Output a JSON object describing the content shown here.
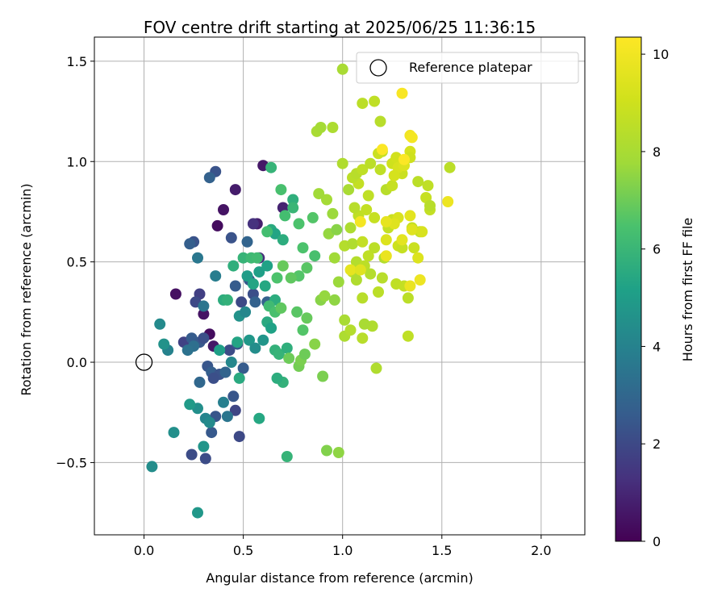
{
  "chart_data": {
    "type": "scatter",
    "title": "FOV centre drift starting at 2025/06/25 11:36:15",
    "xlabel": "Angular distance from reference (arcmin)",
    "ylabel": "Rotation from reference (arcmin)",
    "xlim": [
      -0.25,
      2.22
    ],
    "ylim": [
      -0.86,
      1.62
    ],
    "xticks": [
      0.0,
      0.5,
      1.0,
      1.5,
      2.0
    ],
    "xtick_labels": [
      "0.0",
      "0.5",
      "1.0",
      "1.5",
      "2.0"
    ],
    "yticks": [
      -0.5,
      0.0,
      0.5,
      1.0,
      1.5
    ],
    "ytick_labels": [
      "−0.5",
      "0.0",
      "0.5",
      "1.0",
      "1.5"
    ],
    "grid": true,
    "colormap": "viridis",
    "colorbar": {
      "label": "Hours from first FF file",
      "range": [
        0,
        10.35
      ],
      "ticks": [
        0,
        2,
        4,
        6,
        8,
        10
      ],
      "tick_labels": [
        "0",
        "2",
        "4",
        "6",
        "8",
        "10"
      ]
    },
    "legend": {
      "position": "top-right",
      "entries": [
        {
          "label": "Reference platepar",
          "marker": "open-circle"
        }
      ]
    },
    "reference_point": [
      0.0,
      0.0
    ],
    "points": [
      [
        0.57,
        0.69,
        0.8
      ],
      [
        0.6,
        0.98,
        0.6
      ],
      [
        0.46,
        0.86,
        0.7
      ],
      [
        0.4,
        0.76,
        0.5
      ],
      [
        0.37,
        0.68,
        0.3
      ],
      [
        0.16,
        0.34,
        0.4
      ],
      [
        0.3,
        0.24,
        0.5
      ],
      [
        0.33,
        0.14,
        0.3
      ],
      [
        0.35,
        0.08,
        0.6
      ],
      [
        0.7,
        0.77,
        0.9
      ],
      [
        0.55,
        0.69,
        1.3
      ],
      [
        0.58,
        0.52,
        1.2
      ],
      [
        0.36,
        0.95,
        2.3
      ],
      [
        0.33,
        0.92,
        2.8
      ],
      [
        0.25,
        0.6,
        2.3
      ],
      [
        0.23,
        0.59,
        2.7
      ],
      [
        0.28,
        0.34,
        1.7
      ],
      [
        0.26,
        0.3,
        2.0
      ],
      [
        0.2,
        0.1,
        1.8
      ],
      [
        0.24,
        0.12,
        2.6
      ],
      [
        0.28,
        0.1,
        2.5
      ],
      [
        0.3,
        0.12,
        2.2
      ],
      [
        0.32,
        -0.02,
        2.4
      ],
      [
        0.34,
        -0.05,
        2.7
      ],
      [
        0.38,
        -0.06,
        2.3
      ],
      [
        0.41,
        -0.05,
        2.9
      ],
      [
        0.43,
        0.06,
        2.1
      ],
      [
        0.47,
        0.09,
        2.4
      ],
      [
        0.5,
        -0.03,
        2.6
      ],
      [
        0.55,
        0.34,
        2.2
      ],
      [
        0.53,
        0.41,
        2.5
      ],
      [
        0.56,
        0.3,
        2.8
      ],
      [
        0.49,
        0.3,
        2.0
      ],
      [
        0.46,
        0.38,
        2.6
      ],
      [
        0.44,
        0.62,
        2.3
      ],
      [
        0.52,
        0.6,
        2.9
      ],
      [
        0.62,
        0.3,
        2.8
      ],
      [
        0.35,
        -0.08,
        2.2
      ],
      [
        0.45,
        -0.17,
        2.4
      ],
      [
        0.46,
        -0.24,
        1.9
      ],
      [
        0.48,
        -0.37,
        2.0
      ],
      [
        0.36,
        -0.27,
        2.4
      ],
      [
        0.34,
        -0.35,
        2.5
      ],
      [
        0.24,
        -0.46,
        2.1
      ],
      [
        0.31,
        -0.48,
        2.1
      ],
      [
        0.28,
        -0.1,
        3.0
      ],
      [
        0.25,
        0.08,
        3.3
      ],
      [
        0.3,
        0.28,
        3.5
      ],
      [
        0.36,
        0.43,
        3.8
      ],
      [
        0.27,
        0.52,
        3.6
      ],
      [
        0.22,
        0.06,
        3.4
      ],
      [
        0.12,
        0.06,
        4.0
      ],
      [
        0.08,
        0.19,
        4.3
      ],
      [
        0.1,
        0.09,
        4.6
      ],
      [
        0.15,
        -0.35,
        4.5
      ],
      [
        0.04,
        -0.52,
        4.4
      ],
      [
        0.27,
        -0.75,
        4.8
      ],
      [
        0.27,
        -0.23,
        4.5
      ],
      [
        0.31,
        -0.28,
        4.1
      ],
      [
        0.33,
        -0.3,
        4.3
      ],
      [
        0.3,
        -0.42,
        4.7
      ],
      [
        0.23,
        -0.21,
        4.9
      ],
      [
        0.4,
        -0.2,
        3.9
      ],
      [
        0.42,
        -0.27,
        3.5
      ],
      [
        0.44,
        0.0,
        4.2
      ],
      [
        0.48,
        0.23,
        4.6
      ],
      [
        0.51,
        0.25,
        4.2
      ],
      [
        0.53,
        0.11,
        4.8
      ],
      [
        0.56,
        0.07,
        4.4
      ],
      [
        0.6,
        0.11,
        4.7
      ],
      [
        0.52,
        0.43,
        5.0
      ],
      [
        0.55,
        0.39,
        5.3
      ],
      [
        0.58,
        0.45,
        5.1
      ],
      [
        0.62,
        0.48,
        5.2
      ],
      [
        0.61,
        0.38,
        5.4
      ],
      [
        0.66,
        0.31,
        5.6
      ],
      [
        0.64,
        0.66,
        5.5
      ],
      [
        0.66,
        0.64,
        5.3
      ],
      [
        0.7,
        0.61,
        5.6
      ],
      [
        0.64,
        0.97,
        5.9
      ],
      [
        0.75,
        0.81,
        5.7
      ],
      [
        0.75,
        0.77,
        6.0
      ],
      [
        0.62,
        0.2,
        5.5
      ],
      [
        0.64,
        0.17,
        5.2
      ],
      [
        0.66,
        0.06,
        5.8
      ],
      [
        0.68,
        0.04,
        5.9
      ],
      [
        0.72,
        0.07,
        5.7
      ],
      [
        0.7,
        -0.1,
        5.8
      ],
      [
        0.67,
        -0.08,
        5.6
      ],
      [
        0.72,
        -0.47,
        5.9
      ],
      [
        0.58,
        -0.28,
        5.4
      ],
      [
        0.48,
        -0.08,
        5.5
      ],
      [
        0.47,
        0.1,
        5.3
      ],
      [
        0.38,
        0.06,
        5.1
      ],
      [
        0.4,
        0.31,
        5.6
      ],
      [
        0.42,
        0.31,
        5.8
      ],
      [
        0.45,
        0.48,
        5.7
      ],
      [
        0.5,
        0.52,
        5.9
      ],
      [
        0.54,
        0.52,
        6.1
      ],
      [
        0.57,
        0.52,
        6.2
      ],
      [
        0.62,
        0.65,
        6.3
      ],
      [
        0.69,
        0.86,
        6.4
      ],
      [
        0.71,
        0.73,
        6.3
      ],
      [
        0.78,
        0.69,
        6.5
      ],
      [
        0.8,
        0.57,
        6.5
      ],
      [
        0.85,
        0.72,
        6.6
      ],
      [
        0.86,
        0.53,
        6.4
      ],
      [
        0.82,
        0.47,
        6.7
      ],
      [
        0.78,
        0.43,
        6.6
      ],
      [
        0.74,
        0.42,
        6.8
      ],
      [
        0.7,
        0.48,
        6.9
      ],
      [
        0.67,
        0.42,
        6.5
      ],
      [
        0.63,
        0.28,
        6.2
      ],
      [
        0.66,
        0.25,
        6.4
      ],
      [
        0.69,
        0.27,
        6.8
      ],
      [
        0.77,
        0.25,
        6.7
      ],
      [
        0.82,
        0.22,
        6.9
      ],
      [
        0.8,
        0.16,
        6.6
      ],
      [
        0.73,
        0.02,
        7.0
      ],
      [
        0.78,
        -0.02,
        7.1
      ],
      [
        0.79,
        0.01,
        7.2
      ],
      [
        0.81,
        0.04,
        7.0
      ],
      [
        0.86,
        0.09,
        7.4
      ],
      [
        0.9,
        -0.07,
        7.2
      ],
      [
        0.92,
        -0.44,
        7.3
      ],
      [
        0.98,
        -0.45,
        7.5
      ],
      [
        0.89,
        0.31,
        7.4
      ],
      [
        0.91,
        0.33,
        7.6
      ],
      [
        0.96,
        0.31,
        7.5
      ],
      [
        0.98,
        0.4,
        7.7
      ],
      [
        0.96,
        0.52,
        7.8
      ],
      [
        0.93,
        0.64,
        7.6
      ],
      [
        0.97,
        0.66,
        7.4
      ],
      [
        0.92,
        0.81,
        7.9
      ],
      [
        0.95,
        0.74,
        7.7
      ],
      [
        0.88,
        0.84,
        7.8
      ],
      [
        0.87,
        1.15,
        8.0
      ],
      [
        0.89,
        1.17,
        7.9
      ],
      [
        0.95,
        1.17,
        8.1
      ],
      [
        1.0,
        1.46,
        8.0
      ],
      [
        1.0,
        0.99,
        8.2
      ],
      [
        1.03,
        0.86,
        8.0
      ],
      [
        1.04,
        0.67,
        8.1
      ],
      [
        1.01,
        0.58,
        8.3
      ],
      [
        1.05,
        0.59,
        8.2
      ],
      [
        1.07,
        0.5,
        8.3
      ],
      [
        1.05,
        0.45,
        8.4
      ],
      [
        1.07,
        0.41,
        8.2
      ],
      [
        1.11,
        0.48,
        8.5
      ],
      [
        1.14,
        0.44,
        8.3
      ],
      [
        1.1,
        0.32,
        8.4
      ],
      [
        1.01,
        0.21,
        8.0
      ],
      [
        1.01,
        0.13,
        8.1
      ],
      [
        1.04,
        0.16,
        8.3
      ],
      [
        1.1,
        0.12,
        8.4
      ],
      [
        1.15,
        0.18,
        8.2
      ],
      [
        1.11,
        0.19,
        8.0
      ],
      [
        1.17,
        -0.03,
        8.2
      ],
      [
        1.18,
        0.35,
        8.5
      ],
      [
        1.2,
        0.42,
        8.4
      ],
      [
        1.21,
        0.52,
        8.3
      ],
      [
        1.13,
        0.53,
        8.6
      ],
      [
        1.16,
        0.57,
        8.5
      ],
      [
        1.1,
        0.6,
        8.7
      ],
      [
        1.08,
        0.73,
        8.6
      ],
      [
        1.06,
        0.77,
        8.4
      ],
      [
        1.12,
        0.76,
        8.7
      ],
      [
        1.16,
        0.72,
        8.8
      ],
      [
        1.13,
        0.83,
        8.6
      ],
      [
        1.08,
        0.89,
        8.7
      ],
      [
        1.05,
        0.92,
        8.5
      ],
      [
        1.07,
        0.94,
        8.4
      ],
      [
        1.1,
        0.96,
        8.6
      ],
      [
        1.14,
        0.99,
        8.5
      ],
      [
        1.19,
        0.96,
        8.6
      ],
      [
        1.22,
        0.86,
        8.4
      ],
      [
        1.25,
        0.88,
        8.8
      ],
      [
        1.23,
        0.67,
        8.7
      ],
      [
        1.25,
        0.71,
        8.9
      ],
      [
        1.28,
        0.58,
        9.0
      ],
      [
        1.3,
        0.57,
        8.8
      ],
      [
        1.27,
        0.39,
        8.6
      ],
      [
        1.31,
        0.38,
        8.7
      ],
      [
        1.33,
        0.32,
        8.5
      ],
      [
        1.33,
        0.13,
        8.6
      ],
      [
        1.36,
        0.57,
        8.9
      ],
      [
        1.35,
        0.67,
        8.8
      ],
      [
        1.39,
        0.65,
        8.7
      ],
      [
        1.38,
        0.9,
        8.5
      ],
      [
        1.42,
        0.82,
        8.8
      ],
      [
        1.43,
        0.88,
        8.6
      ],
      [
        1.44,
        0.76,
        8.7
      ],
      [
        1.44,
        0.78,
        8.4
      ],
      [
        1.54,
        0.97,
        8.5
      ],
      [
        1.1,
        1.29,
        8.5
      ],
      [
        1.16,
        1.3,
        8.6
      ],
      [
        1.19,
        1.2,
        8.4
      ],
      [
        1.2,
        1.05,
        8.7
      ],
      [
        1.18,
        1.04,
        8.9
      ],
      [
        1.25,
        0.99,
        9.0
      ],
      [
        1.27,
        1.02,
        9.1
      ],
      [
        1.3,
        0.94,
        8.9
      ],
      [
        1.34,
        1.05,
        9.2
      ],
      [
        1.34,
        1.02,
        9.0
      ],
      [
        1.28,
        0.97,
        9.3
      ],
      [
        1.31,
        0.98,
        9.4
      ],
      [
        1.26,
        0.93,
        9.2
      ],
      [
        1.28,
        0.72,
        9.3
      ],
      [
        1.26,
        0.69,
        9.5
      ],
      [
        1.22,
        0.61,
        9.4
      ],
      [
        1.34,
        0.73,
        9.6
      ],
      [
        1.35,
        0.66,
        9.5
      ],
      [
        1.4,
        0.65,
        9.3
      ],
      [
        1.38,
        0.52,
        9.4
      ],
      [
        1.22,
        0.7,
        9.7
      ],
      [
        1.3,
        0.61,
        9.6
      ],
      [
        1.22,
        0.53,
        9.8
      ],
      [
        1.04,
        0.46,
        9.7
      ],
      [
        1.09,
        0.46,
        9.5
      ],
      [
        1.34,
        0.38,
        9.8
      ],
      [
        1.39,
        0.41,
        9.9
      ],
      [
        1.53,
        0.8,
        9.9
      ],
      [
        1.34,
        1.13,
        10.0
      ],
      [
        1.35,
        1.12,
        10.1
      ],
      [
        1.3,
        1.34,
        10.2
      ],
      [
        1.09,
        0.7,
        10.1
      ],
      [
        1.2,
        1.06,
        10.3
      ],
      [
        1.31,
        1.01,
        10.3
      ]
    ]
  }
}
